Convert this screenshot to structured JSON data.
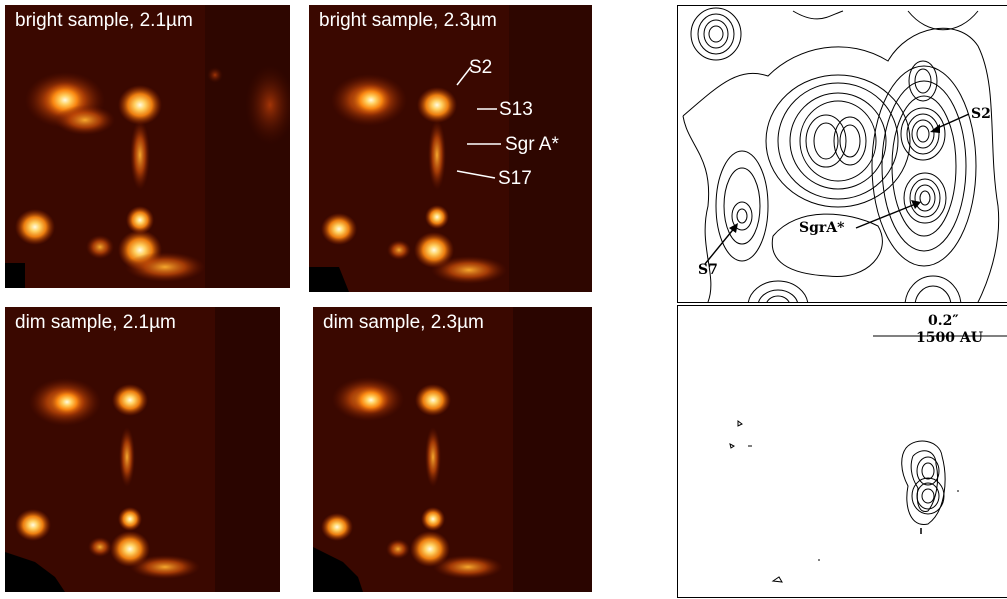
{
  "panels": {
    "bright_21": "bright sample, 2.1µm",
    "bright_23": "bright sample, 2.3µm",
    "dim_21": "dim sample, 2.1µm",
    "dim_23": "dim sample, 2.3µm"
  },
  "annotations": {
    "s2": "S2",
    "s13": "S13",
    "sgra": "Sgr A*",
    "s17": "S17"
  },
  "contour": {
    "top": {
      "s2": "S2",
      "sgra": "SgrA*",
      "s7": "S7"
    },
    "bottom": {
      "scale_angle": "0.2″",
      "scale_au": "1500 AU"
    }
  },
  "colors": {
    "background": "#2a0500",
    "glow_core": "#fff6c8",
    "glow_mid": "#ff9a1a",
    "glow_outer": "#b33a00"
  }
}
